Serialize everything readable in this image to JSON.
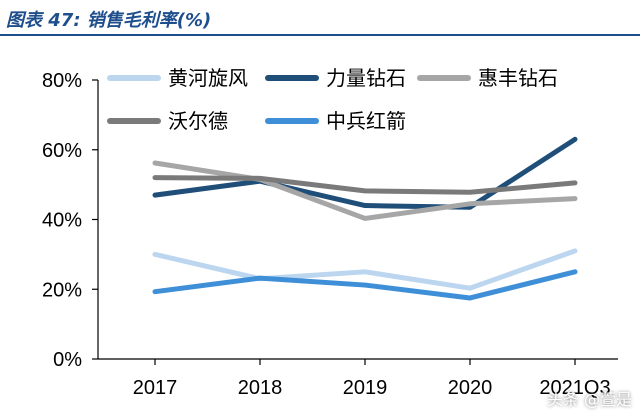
{
  "title": "图表 47: 销售毛利率(%)",
  "watermark": "头条 @萱是",
  "chart_data": {
    "type": "line",
    "title": "销售毛利率(%)",
    "xlabel": "",
    "ylabel": "",
    "categories": [
      "2017",
      "2018",
      "2019",
      "2020",
      "2021Q3"
    ],
    "y_ticks": [
      "0%",
      "20%",
      "40%",
      "60%",
      "80%"
    ],
    "ylim": [
      0,
      80
    ],
    "grid": false,
    "legend_position": "top",
    "series": [
      {
        "name": "黄河旋风",
        "color": "#bcd6f0",
        "values": [
          30.0,
          23.0,
          25.0,
          20.3,
          31.0
        ]
      },
      {
        "name": "力量钻石",
        "color": "#1f4e79",
        "values": [
          47.0,
          51.0,
          44.0,
          43.5,
          63.0
        ]
      },
      {
        "name": "惠丰钻石",
        "color": "#a6a6a6",
        "values": [
          56.2,
          51.5,
          40.3,
          44.5,
          46.0
        ]
      },
      {
        "name": "沃尔德",
        "color": "#7a7a7a",
        "values": [
          52.0,
          51.8,
          48.2,
          47.8,
          50.5
        ]
      },
      {
        "name": "中兵红箭",
        "color": "#3e8fd8",
        "values": [
          19.3,
          23.2,
          21.2,
          17.5,
          25.0
        ]
      }
    ]
  }
}
